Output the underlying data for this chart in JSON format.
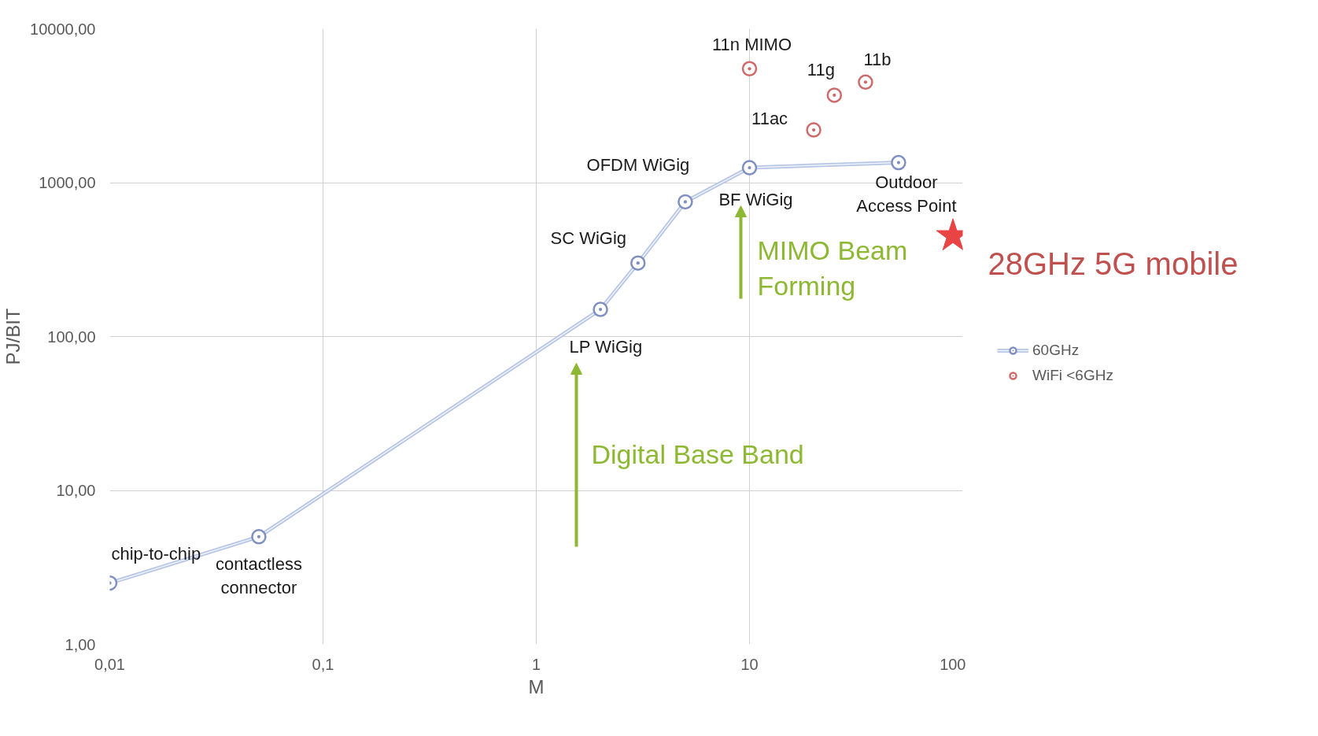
{
  "chart_data": {
    "type": "line",
    "xlabel": "M",
    "ylabel": "PJ/BIT",
    "log": "xy",
    "grid": true,
    "legend": "right",
    "marker": "circle",
    "xlim": [
      0.01,
      100
    ],
    "ylim": [
      1,
      10000
    ],
    "xticks": [
      {
        "value": 0.01,
        "label": "0,01"
      },
      {
        "value": 0.1,
        "label": "0,1"
      },
      1,
      10,
      100
    ],
    "yticks": [
      {
        "value": 1,
        "label": "1,00"
      },
      {
        "value": 10,
        "label": "10,00"
      },
      {
        "value": 100,
        "label": "100,00"
      },
      {
        "value": 1000,
        "label": "1000,00"
      },
      {
        "value": 10000,
        "label": "10000,00"
      }
    ],
    "series": [
      {
        "name": "60GHz",
        "color": "#7f8fbf",
        "x": [
          0.01,
          0.05,
          2,
          3,
          5,
          10,
          50
        ],
        "values": [
          2.5,
          5,
          150,
          300,
          750,
          1250,
          1350
        ]
      },
      {
        "name": "WiFi <6GHz",
        "type": "scatter",
        "color": "#d06a6a",
        "x": [
          10,
          25,
          35,
          20
        ],
        "values": [
          5500,
          3700,
          4500,
          2200
        ]
      },
      {
        "type": "scatter",
        "marker": "star",
        "color": "#e84444",
        "x": [
          90
        ],
        "values": [
          450
        ]
      }
    ],
    "annotations": [
      {
        "text": "chip-to-chip",
        "x": 0.01,
        "y": 2.5
      },
      {
        "text": "contactless\nconnector",
        "x": 0.05,
        "y": 5
      },
      {
        "text": "LP WiGig",
        "x": 2,
        "y": 150
      },
      {
        "text": "SC WiGig",
        "x": 3,
        "y": 300
      },
      {
        "text": "OFDM WiGig",
        "x": 5,
        "y": 750
      },
      {
        "text": "BF WiGig",
        "x": 10,
        "y": 1250
      },
      {
        "text": "Outdoor\nAccess Point",
        "x": 50,
        "y": 1350
      },
      {
        "text": "11n MIMO",
        "x": 10,
        "y": 5500
      },
      {
        "text": "11g",
        "x": 25,
        "y": 3700
      },
      {
        "text": "11b",
        "x": 35,
        "y": 4500
      },
      {
        "text": "11ac",
        "x": 20,
        "y": 2200
      },
      "Digital Base Band",
      "MIMO Beam\nForming",
      "28GHz 5G mobile"
    ]
  }
}
